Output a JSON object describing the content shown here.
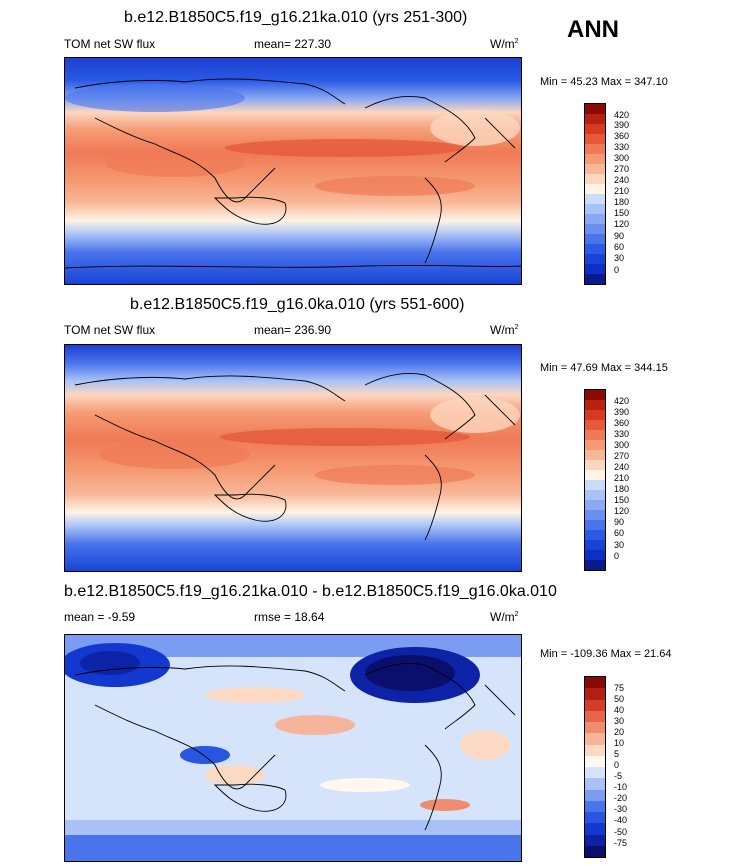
{
  "season": "ANN",
  "palettes": {
    "flux": [
      "#0a1a8c",
      "#0e2fc4",
      "#1744d6",
      "#2a5ae6",
      "#4a74ec",
      "#6a8ff0",
      "#8aa8f3",
      "#aac3f7",
      "#cadcfa",
      "#fff4e6",
      "#fcd7bf",
      "#f8b898",
      "#f59b74",
      "#ef7a55",
      "#e55a3a",
      "#d63a24",
      "#b8200f",
      "#8c0a06"
    ],
    "diff": [
      "#0a0f6e",
      "#0c23a8",
      "#1238cf",
      "#2a55e0",
      "#4a74ea",
      "#7b9cf1",
      "#a9c1f7",
      "#d5e3fb",
      "#fff8ee",
      "#fbd9c2",
      "#f6b49a",
      "#f08d70",
      "#e7654a",
      "#d43d2a",
      "#b41f15",
      "#8a0707"
    ]
  },
  "panels": [
    {
      "title": "b.e12.B1850C5.f19_g16.21ka.010 (yrs 251-300)",
      "left_label": "TOM net SW flux",
      "center_label": "mean= 227.30",
      "units": "W/m",
      "units_sup": "2",
      "minmax": "Min =  45.23 Max = 347.10",
      "palette": "flux",
      "ticks": [
        "420",
        "390",
        "360",
        "330",
        "300",
        "270",
        "240",
        "210",
        "180",
        "150",
        "120",
        "90",
        "60",
        "30",
        "0"
      ]
    },
    {
      "title": "b.e12.B1850C5.f19_g16.0ka.010 (yrs 551-600)",
      "left_label": "TOM net SW flux",
      "center_label": "mean= 236.90",
      "units": "W/m",
      "units_sup": "2",
      "minmax": "Min =  47.69 Max = 344.15",
      "palette": "flux",
      "ticks": [
        "420",
        "390",
        "360",
        "330",
        "300",
        "270",
        "240",
        "210",
        "180",
        "150",
        "120",
        "90",
        "60",
        "30",
        "0"
      ]
    },
    {
      "title": "b.e12.B1850C5.f19_g16.21ka.010 - b.e12.B1850C5.f19_g16.0ka.010",
      "left_label": "mean =  -9.59",
      "center_label": "rmse =  18.64",
      "units": "W/m",
      "units_sup": "2",
      "minmax": "Min = -109.36 Max =  21.64",
      "palette": "diff",
      "ticks": [
        "75",
        "50",
        "40",
        "30",
        "20",
        "10",
        "5",
        "0",
        "-5",
        "-10",
        "-20",
        "-30",
        "-40",
        "-50",
        "-75"
      ]
    }
  ]
}
